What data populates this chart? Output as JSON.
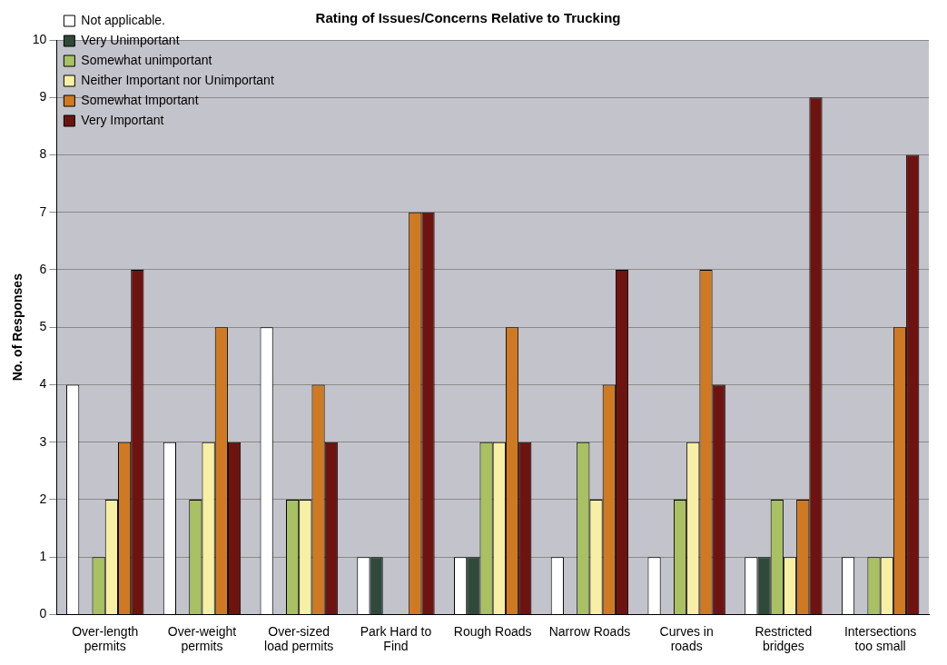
{
  "chart_data": {
    "type": "bar",
    "title": "Rating of Issues/Concerns Relative to Trucking",
    "ylabel": "No. of Responses",
    "categories": [
      "Over-length permits",
      "Over-weight permits",
      "Over-sized load permits",
      "Park Hard to Find",
      "Rough Roads",
      "Narrow Roads",
      "Curves in roads",
      "Restricted bridges",
      "Intersections too small"
    ],
    "series": [
      {
        "name": "Not applicable.",
        "color": "#ffffff",
        "values": [
          4,
          3,
          5,
          1,
          1,
          1,
          1,
          1,
          1
        ]
      },
      {
        "name": "Very Unimportant",
        "color": "#2f4a3a",
        "values": [
          0,
          0,
          0,
          1,
          1,
          0,
          0,
          1,
          0
        ]
      },
      {
        "name": "Somewhat unimportant",
        "color": "#a9c063",
        "values": [
          1,
          2,
          2,
          0,
          3,
          3,
          2,
          2,
          1
        ]
      },
      {
        "name": "Neither Important nor Unimportant",
        "color": "#f7f0a4",
        "values": [
          2,
          3,
          2,
          0,
          3,
          2,
          3,
          1,
          1
        ]
      },
      {
        "name": "Somewhat Important",
        "color": "#cf7a22",
        "values": [
          3,
          5,
          4,
          7,
          5,
          4,
          6,
          2,
          5
        ]
      },
      {
        "name": "Very Important",
        "color": "#6e1410",
        "values": [
          6,
          3,
          3,
          7,
          3,
          6,
          4,
          9,
          8
        ]
      }
    ],
    "ylim": [
      0,
      10
    ],
    "yticks": [
      0,
      1,
      2,
      3,
      4,
      5,
      6,
      7,
      8,
      9,
      10
    ],
    "grid": "y",
    "legend": "top left"
  }
}
